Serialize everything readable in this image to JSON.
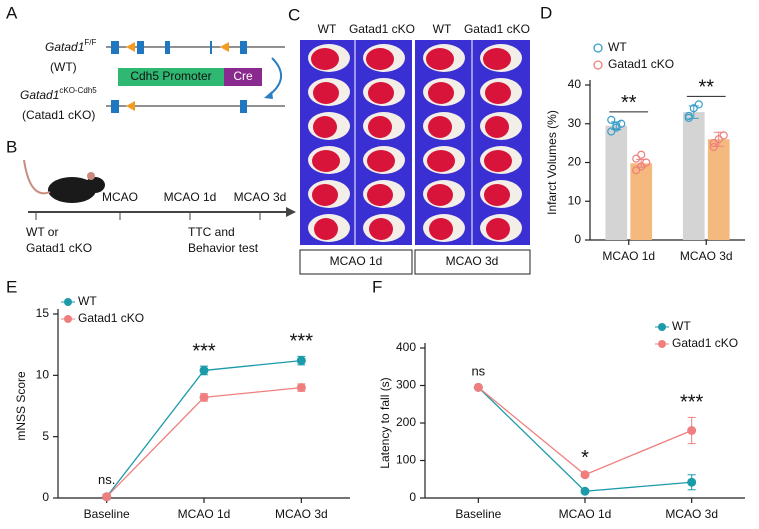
{
  "panel_labels": [
    "A",
    "B",
    "C",
    "D",
    "E",
    "F"
  ],
  "diagram_a": {
    "wt_gene": "Gatad1",
    "wt_sup": "F/F",
    "wt_label": "(WT)",
    "promoter": "Cdh5 Promoter",
    "cre": "Cre",
    "cko_gene": "Gatad1",
    "cko_sup": "cKO-Cdh5",
    "cko_label": "(Catad1 cKO)"
  },
  "timeline_b": {
    "group_1": "WT or",
    "group_2": "Gatad1 cKO",
    "steps": [
      "MCAO",
      "MCAO 1d",
      "MCAO 3d"
    ],
    "test_1": "TTC and",
    "test_2": "Behavior test"
  },
  "photo_c": {
    "columns": [
      "WT",
      "Gatad1 cKO",
      "WT",
      "Gatad1 cKO"
    ],
    "groups": [
      "MCAO 1d",
      "MCAO 3d"
    ]
  },
  "chart_data": [
    {
      "type": "bar",
      "ylabel": "Infarct Volumes (%)",
      "categories": [
        "MCAO 1d",
        "MCAO 3d"
      ],
      "series": [
        {
          "name": "WT",
          "color": "#d4d4d4",
          "marker_color": "#3a9fc8",
          "values": [
            29.5,
            33
          ],
          "errors": [
            1,
            1.6
          ],
          "points": [
            [
              28,
              29,
              30,
              31,
              29.5
            ],
            [
              32,
              34,
              35,
              31.5
            ]
          ]
        },
        {
          "name": "Gatad1 cKO",
          "color": "#f4b97c",
          "marker_color": "#ef7f7f",
          "values": [
            19.8,
            26
          ],
          "errors": [
            1,
            1.8
          ],
          "points": [
            [
              18,
              19,
              20,
              21,
              22
            ],
            [
              24,
              26,
              27,
              25
            ]
          ]
        }
      ],
      "annotations": [
        "**",
        "**"
      ],
      "ylim": [
        0,
        40
      ],
      "yticks": [
        0,
        10,
        20,
        30,
        40
      ]
    },
    {
      "type": "line",
      "ylabel": "mNSS Score",
      "categories": [
        "Baseline",
        "MCAO 1d",
        "MCAO 3d"
      ],
      "series": [
        {
          "name": "WT",
          "color": "#1b9aaa",
          "values": [
            0.1,
            10.4,
            11.2
          ],
          "errors": [
            0.2,
            0.35,
            0.35
          ]
        },
        {
          "name": "Gatad1 cKO",
          "color": "#ef7f7f",
          "values": [
            0.1,
            8.2,
            9.0
          ],
          "errors": [
            0.2,
            0.3,
            0.3
          ]
        }
      ],
      "annotations": [
        "ns.",
        "***",
        "***"
      ],
      "ylim": [
        0,
        15
      ],
      "yticks": [
        0,
        5,
        10,
        15
      ]
    },
    {
      "type": "line",
      "ylabel": "Latency to fall (s)",
      "categories": [
        "Baseline",
        "MCAO 1d",
        "MCAO 3d"
      ],
      "series": [
        {
          "name": "WT",
          "color": "#1b9aaa",
          "values": [
            295,
            18,
            42
          ],
          "errors": [
            3,
            4,
            20
          ]
        },
        {
          "name": "Gatad1 cKO",
          "color": "#ef7f7f",
          "values": [
            295,
            62,
            180
          ],
          "errors": [
            3,
            5,
            35
          ]
        }
      ],
      "annotations": [
        "ns",
        "*",
        "***"
      ],
      "ylim": [
        0,
        400
      ],
      "yticks": [
        0,
        100,
        200,
        300,
        400
      ]
    }
  ]
}
